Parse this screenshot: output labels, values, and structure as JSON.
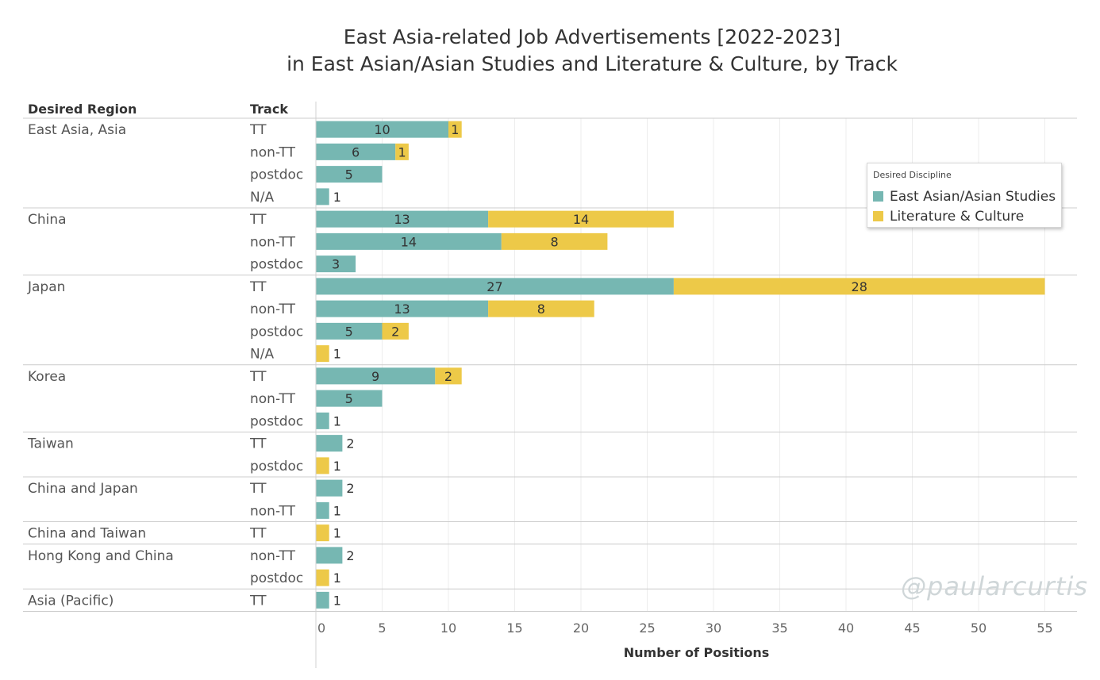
{
  "title_lines": [
    "East Asia-related Job Advertisements [2022-2023]",
    "in East Asian/Asian Studies and Literature & Culture, by Track"
  ],
  "watermark": "@paularcurtis",
  "legend": {
    "title": "Desired Discipline",
    "items": [
      {
        "label": "East Asian/Asian Studies",
        "color": "#76b7b2"
      },
      {
        "label": "Literature & Culture",
        "color": "#edc948"
      }
    ]
  },
  "chart_data": {
    "type": "bar",
    "orientation": "horizontal",
    "stacked": true,
    "row_headers": [
      "Desired Region",
      "Track"
    ],
    "xlabel": "Number of Positions",
    "xlim": [
      0,
      55
    ],
    "xticks": [
      0,
      5,
      10,
      15,
      20,
      25,
      30,
      35,
      40,
      45,
      50,
      55
    ],
    "grid": true,
    "legend_position": "top-right",
    "series": [
      {
        "name": "East Asian/Asian Studies",
        "color": "#76b7b2"
      },
      {
        "name": "Literature & Culture",
        "color": "#edc948"
      }
    ],
    "groups": [
      {
        "region": "East Asia, Asia",
        "rows": [
          {
            "track": "TT",
            "values": [
              10,
              1
            ]
          },
          {
            "track": "non-TT",
            "values": [
              6,
              1
            ]
          },
          {
            "track": "postdoc",
            "values": [
              5,
              0
            ]
          },
          {
            "track": "N/A",
            "values": [
              1,
              0
            ]
          }
        ]
      },
      {
        "region": "China",
        "rows": [
          {
            "track": "TT",
            "values": [
              13,
              14
            ]
          },
          {
            "track": "non-TT",
            "values": [
              14,
              8
            ]
          },
          {
            "track": "postdoc",
            "values": [
              3,
              0
            ]
          }
        ]
      },
      {
        "region": "Japan",
        "rows": [
          {
            "track": "TT",
            "values": [
              27,
              28
            ]
          },
          {
            "track": "non-TT",
            "values": [
              13,
              8
            ]
          },
          {
            "track": "postdoc",
            "values": [
              5,
              2
            ]
          },
          {
            "track": "N/A",
            "values": [
              0,
              1
            ]
          }
        ]
      },
      {
        "region": "Korea",
        "rows": [
          {
            "track": "TT",
            "values": [
              9,
              2
            ]
          },
          {
            "track": "non-TT",
            "values": [
              5,
              0
            ]
          },
          {
            "track": "postdoc",
            "values": [
              1,
              0
            ]
          }
        ]
      },
      {
        "region": "Taiwan",
        "rows": [
          {
            "track": "TT",
            "values": [
              2,
              0
            ]
          },
          {
            "track": "postdoc",
            "values": [
              0,
              1
            ]
          }
        ]
      },
      {
        "region": "China and Japan",
        "rows": [
          {
            "track": "TT",
            "values": [
              2,
              0
            ]
          },
          {
            "track": "non-TT",
            "values": [
              1,
              0
            ]
          }
        ]
      },
      {
        "region": "China and Taiwan",
        "rows": [
          {
            "track": "TT",
            "values": [
              0,
              1
            ]
          }
        ]
      },
      {
        "region": "Hong Kong and China",
        "rows": [
          {
            "track": "non-TT",
            "values": [
              2,
              0
            ]
          },
          {
            "track": "postdoc",
            "values": [
              0,
              1
            ]
          }
        ]
      },
      {
        "region": "Asia (Pacific)",
        "rows": [
          {
            "track": "TT",
            "values": [
              1,
              0
            ]
          }
        ]
      }
    ]
  }
}
